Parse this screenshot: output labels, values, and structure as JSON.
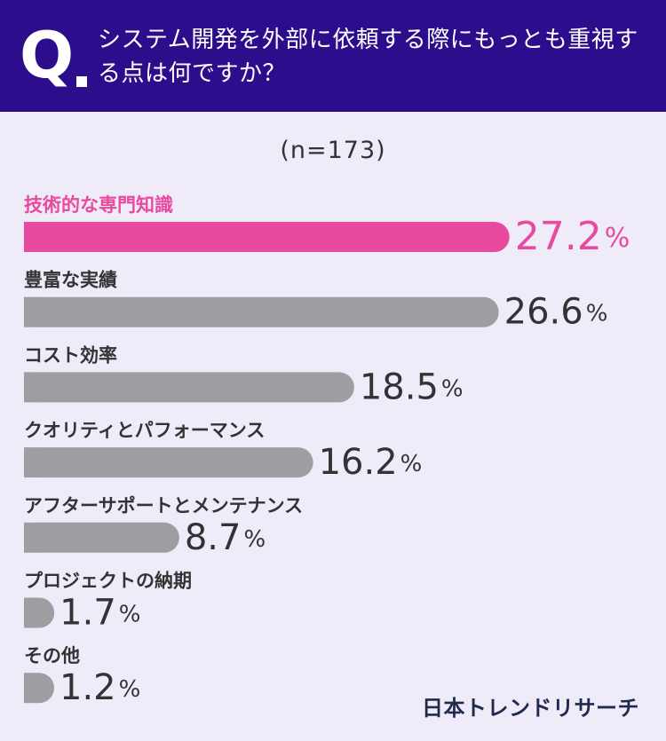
{
  "header": {
    "q_letter": "Q",
    "question": "システム開発を外部に依頼する際にもっとも重視する点は何ですか？"
  },
  "sample_size": "(n=173)",
  "brand": "日本トレンドリサーチ",
  "colors": {
    "header_bg": "#2c0d8c",
    "highlight": "#e84aa0",
    "bar": "#9d9ea2",
    "background": "#efebf8",
    "text": "#333333"
  },
  "chart_data": {
    "type": "bar",
    "orientation": "horizontal",
    "unit": "%",
    "categories": [
      "技術的な専門知識",
      "豊富な実績",
      "コスト効率",
      "クオリティとパフォーマンス",
      "アフターサポートとメンテナンス",
      "プロジェクトの納期",
      "その他"
    ],
    "values": [
      27.2,
      26.6,
      18.5,
      16.2,
      8.7,
      1.7,
      1.2
    ],
    "value_labels": [
      "27.2",
      "26.6",
      "18.5",
      "16.2",
      "8.7",
      "1.7",
      "1.2"
    ],
    "highlight_index": 0,
    "title": "",
    "xlabel": "",
    "ylabel": ""
  }
}
